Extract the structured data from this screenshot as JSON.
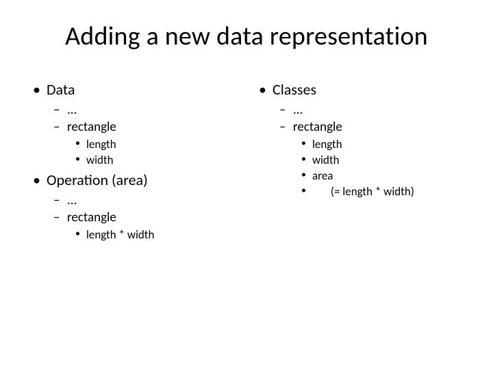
{
  "title": "Adding a new data representation",
  "left": {
    "section1": {
      "heading": "Data",
      "items": {
        "i0": "...",
        "i1": {
          "label": "rectangle",
          "sub": {
            "s0": "length",
            "s1": "width"
          }
        }
      }
    },
    "section2": {
      "heading": "Operation (area)",
      "items": {
        "i0": "...",
        "i1": {
          "label": "rectangle",
          "sub": {
            "s0": "length * width"
          }
        }
      }
    }
  },
  "right": {
    "section1": {
      "heading": "Classes",
      "items": {
        "i0": "...",
        "i1": {
          "label": "rectangle",
          "sub": {
            "s0": "length",
            "s1": "width",
            "s2": "area",
            "s3": "       (=  length * width)"
          }
        }
      }
    }
  }
}
